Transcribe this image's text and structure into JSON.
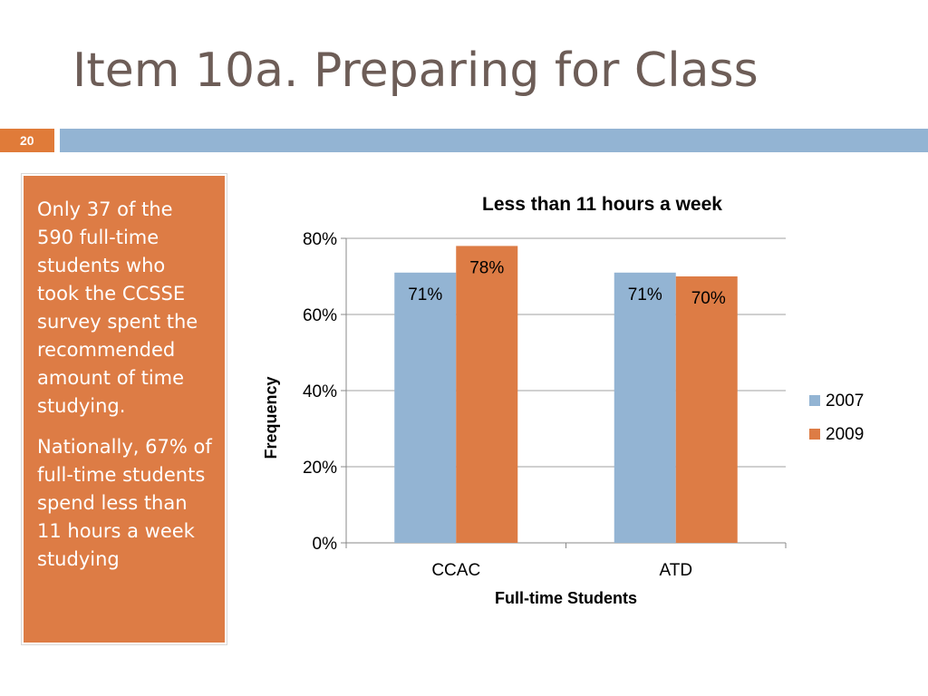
{
  "slide": {
    "title": "Item 10a. Preparing for Class",
    "number": "20"
  },
  "sidebar": {
    "paragraph1": "Only 37 of the 590 full-time students who took the CCSSE survey spent the recommended amount of time studying.",
    "paragraph2": "Nationally, 67% of full-time students spend less than 11 hours a week studying"
  },
  "colors": {
    "accent_orange": "#e07b39",
    "accent_blue": "#93b4d3",
    "series_2007": "#93b4d3",
    "series_2009": "#dd7c45"
  },
  "chart_data": {
    "type": "bar",
    "title": "Less than 11 hours a week",
    "xlabel": "Full-time Students",
    "ylabel": "Frequency",
    "categories": [
      "CCAC",
      "ATD"
    ],
    "series": [
      {
        "name": "2007",
        "values": [
          0.71,
          0.71
        ],
        "labels": [
          "71%",
          "71%"
        ]
      },
      {
        "name": "2009",
        "values": [
          0.78,
          0.7
        ],
        "labels": [
          "78%",
          "70%"
        ]
      }
    ],
    "ylim": [
      0,
      0.8
    ],
    "yticks": [
      0,
      0.2,
      0.4,
      0.6,
      0.8
    ],
    "ytick_labels": [
      "0%",
      "20%",
      "40%",
      "60%",
      "80%"
    ],
    "grid": true,
    "legend": "right"
  }
}
